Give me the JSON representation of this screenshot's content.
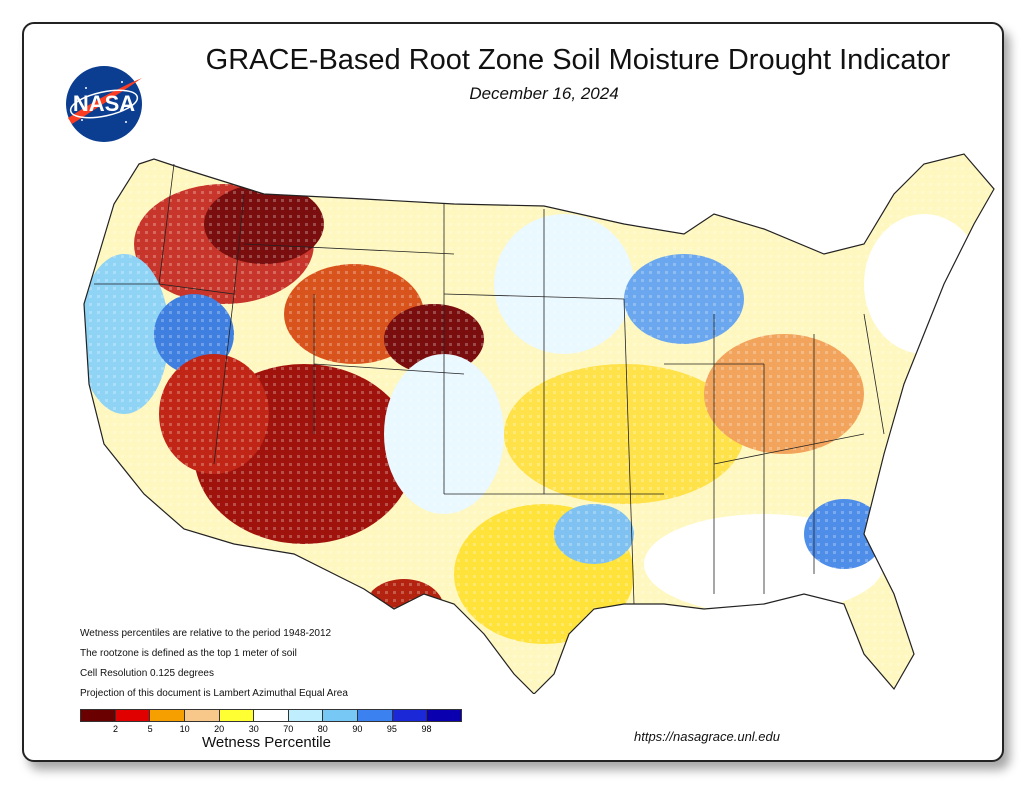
{
  "header": {
    "logo_text": "NASA",
    "title": "GRACE-Based Root Zone Soil  Moisture Drought Indicator",
    "date": "December 16, 2024"
  },
  "notes": [
    "Wetness percentiles are relative to the period 1948-2012",
    "The rootzone is defined as the top 1 meter of soil",
    "Cell Resolution 0.125 degrees",
    "Projection of this document is Lambert Azimuthal Equal Area"
  ],
  "legend": {
    "label": "Wetness Percentile",
    "ticks": [
      "2",
      "5",
      "10",
      "20",
      "30",
      "70",
      "80",
      "90",
      "95",
      "98"
    ],
    "colors": [
      "#6b0000",
      "#e00000",
      "#f5a000",
      "#f7c88a",
      "#ffff33",
      "#ffffff",
      "#bfeeff",
      "#77c8f4",
      "#3b82f0",
      "#1a28d8",
      "#0a00b0"
    ]
  },
  "footer": {
    "url": "https://nasagrace.unl.edu"
  },
  "colors": {
    "frame_border": "#222222",
    "nasa_blue": "#0b3d91",
    "nasa_red": "#fc3d21"
  }
}
